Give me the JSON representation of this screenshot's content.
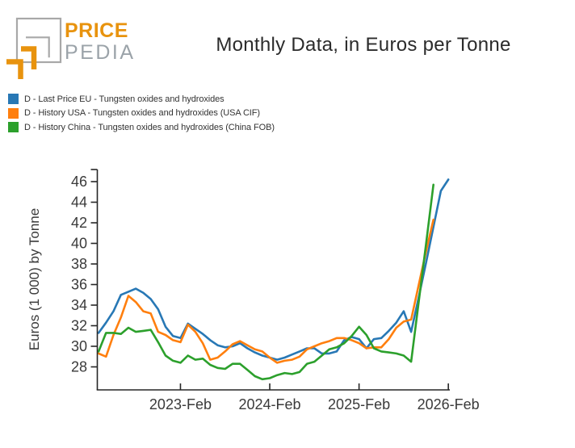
{
  "logo": {
    "brand_top": "PRICE",
    "brand_bottom": "PEDIA"
  },
  "logo_colors": {
    "orange": "#e8930e",
    "gray": "#a8a8a8",
    "text_gray": "#9ba3a9"
  },
  "chart_data": {
    "type": "line",
    "title": "Monthly Data, in Euros per Tonne",
    "ylabel": "Euros (1 000) by Tonne",
    "xlabel": "",
    "grid": false,
    "legend_position": "top-left",
    "ylim": [
      25.8,
      47.2
    ],
    "y_ticks": [
      28,
      30,
      32,
      34,
      36,
      38,
      40,
      42,
      44,
      46
    ],
    "x_tick_labels": [
      "2023-Feb",
      "2024-Feb",
      "2025-Feb",
      "2026-Feb"
    ],
    "x_tick_indices": [
      11,
      23,
      35,
      47
    ],
    "months": [
      "2022-Mar",
      "2022-Apr",
      "2022-May",
      "2022-Jun",
      "2022-Jul",
      "2022-Aug",
      "2022-Sep",
      "2022-Oct",
      "2022-Nov",
      "2022-Dec",
      "2023-Jan",
      "2023-Feb",
      "2023-Mar",
      "2023-Apr",
      "2023-May",
      "2023-Jun",
      "2023-Jul",
      "2023-Aug",
      "2023-Sep",
      "2023-Oct",
      "2023-Nov",
      "2023-Dec",
      "2024-Jan",
      "2024-Feb",
      "2024-Mar",
      "2024-Apr",
      "2024-May",
      "2024-Jun",
      "2024-Jul",
      "2024-Aug",
      "2024-Sep",
      "2024-Oct",
      "2024-Nov",
      "2024-Dec",
      "2025-Jan",
      "2025-Feb",
      "2025-Mar",
      "2025-Apr",
      "2025-May",
      "2025-Jun",
      "2025-Jul",
      "2025-Aug",
      "2025-Sep",
      "2025-Oct",
      "2025-Nov",
      "2025-Dec",
      "2026-Jan",
      "2026-Feb"
    ],
    "series": [
      {
        "name": "D - Last Price EU - Tungsten oxides and hydroxides",
        "key": "eu",
        "color": "#2878b5",
        "values": [
          31.3,
          32.3,
          33.4,
          35.0,
          35.3,
          35.6,
          35.2,
          34.6,
          33.6,
          31.9,
          31.0,
          30.8,
          32.2,
          31.7,
          31.2,
          30.6,
          30.1,
          29.9,
          30.0,
          30.3,
          29.8,
          29.4,
          29.1,
          28.9,
          28.7,
          28.9,
          29.2,
          29.5,
          29.8,
          29.8,
          29.3,
          29.3,
          29.5,
          30.6,
          30.9,
          30.7,
          29.8,
          30.7,
          30.8,
          31.5,
          32.3,
          33.4,
          31.4,
          34.7,
          38.1,
          41.6,
          45.1,
          46.2
        ]
      },
      {
        "name": "D - History USA - Tungsten oxides and hydroxides (USA CIF)",
        "key": "usa",
        "color": "#ff7f0e",
        "values": [
          29.3,
          29.0,
          31.1,
          32.8,
          34.9,
          34.3,
          33.4,
          33.2,
          31.4,
          31.1,
          30.6,
          30.4,
          32.1,
          31.4,
          30.3,
          28.7,
          28.9,
          29.5,
          30.2,
          30.5,
          30.1,
          29.7,
          29.5,
          28.9,
          28.4,
          28.6,
          28.7,
          29.0,
          29.7,
          30.0,
          30.3,
          30.5,
          30.8,
          30.8,
          30.6,
          30.3,
          29.8,
          29.9,
          29.9,
          30.7,
          31.8,
          32.4,
          32.6,
          35.9,
          39.2,
          42.3,
          null,
          null
        ]
      },
      {
        "name": "D - History China - Tungsten oxides and hydroxides (China FOB)",
        "key": "china",
        "color": "#2ca02c",
        "values": [
          29.5,
          31.3,
          31.3,
          31.2,
          31.8,
          31.4,
          31.5,
          31.6,
          30.4,
          29.1,
          28.6,
          28.4,
          29.1,
          28.7,
          28.8,
          28.2,
          27.9,
          27.8,
          28.3,
          28.3,
          27.7,
          27.1,
          26.8,
          26.9,
          27.2,
          27.4,
          27.3,
          27.5,
          28.3,
          28.5,
          29.1,
          29.7,
          29.9,
          30.3,
          31.0,
          31.9,
          31.1,
          29.8,
          29.5,
          29.4,
          29.3,
          29.1,
          28.5,
          34.2,
          39.9,
          45.7,
          null,
          null
        ]
      }
    ]
  }
}
